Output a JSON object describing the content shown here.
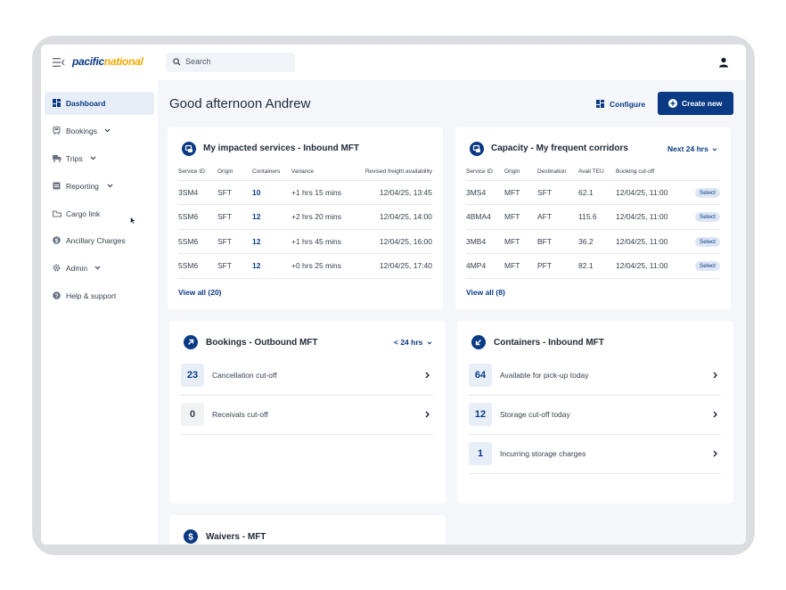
{
  "app": {
    "logo_text_a": "pacific",
    "logo_text_b": "national",
    "search_placeholder": "Search"
  },
  "sidebar": {
    "items": [
      {
        "label": "Dashboard",
        "icon": "dashboard-icon",
        "active": true
      },
      {
        "label": "Bookings",
        "icon": "bookings-icon",
        "has_chevron": true
      },
      {
        "label": "Trips",
        "icon": "truck-icon",
        "has_chevron": true
      },
      {
        "label": "Reporting",
        "icon": "reporting-icon",
        "has_chevron": true
      },
      {
        "label": "Cargo link",
        "icon": "cargo-link-icon"
      },
      {
        "label": "Ancillary Charges",
        "icon": "dollar-icon"
      },
      {
        "label": "Admin",
        "icon": "gear-icon",
        "has_chevron": true
      },
      {
        "label": "Help & support",
        "icon": "help-icon"
      }
    ]
  },
  "header": {
    "greeting": "Good afternoon Andrew",
    "configure_label": "Configure",
    "create_label": "Create new"
  },
  "impacted": {
    "title": "My impacted services - Inbound MFT",
    "columns": [
      "Service ID",
      "Origin",
      "Containers",
      "Variance",
      "Revised freight availability"
    ],
    "rows": [
      {
        "id": "3SM4",
        "origin": "SFT",
        "containers": "10",
        "variance": "+1 hrs 15 mins",
        "revised": "12/04/25, 13:45"
      },
      {
        "id": "5SM6",
        "origin": "SFT",
        "containers": "12",
        "variance": "+2 hrs 20 mins",
        "revised": "12/04/25, 14:00"
      },
      {
        "id": "5SM6",
        "origin": "SFT",
        "containers": "12",
        "variance": "+1 hrs 45 mins",
        "revised": "12/04/25, 16:00"
      },
      {
        "id": "5SM6",
        "origin": "SFT",
        "containers": "12",
        "variance": "+0 hrs 25 mins",
        "revised": "12/04/25, 17:40"
      }
    ],
    "view_all": "View all (20)"
  },
  "capacity": {
    "title": "Capacity - My frequent corridors",
    "filter": "Next 24 hrs",
    "columns": [
      "Service ID",
      "Origin",
      "Destination",
      "Avail TEU",
      "Booking cut-off",
      ""
    ],
    "rows": [
      {
        "id": "3MS4",
        "origin": "MFT",
        "dest": "SFT",
        "teu": "62.1",
        "cutoff": "12/04/25, 11:00",
        "action": "Select"
      },
      {
        "id": "4BMA4",
        "origin": "MFT",
        "dest": "AFT",
        "teu": "115.6",
        "cutoff": "12/04/25, 11:00",
        "action": "Select"
      },
      {
        "id": "3MB4",
        "origin": "MFT",
        "dest": "BFT",
        "teu": "36.2",
        "cutoff": "12/04/25, 11:00",
        "action": "Select"
      },
      {
        "id": "4MP4",
        "origin": "MFT",
        "dest": "PFT",
        "teu": "82.1",
        "cutoff": "12/04/25, 11:00",
        "action": "Select"
      }
    ],
    "view_all": "View all (8)"
  },
  "bookings": {
    "title": "Bookings - Outbound MFT",
    "filter": "< 24 hrs",
    "items": [
      {
        "count": "23",
        "label": "Cancellation cut-off"
      },
      {
        "count": "0",
        "label": "Receivals cut-off"
      }
    ]
  },
  "containers": {
    "title": "Containers - Inbound MFT",
    "items": [
      {
        "count": "64",
        "label": "Available for pick-up today"
      },
      {
        "count": "12",
        "label": "Storage cut-off today"
      },
      {
        "count": "1",
        "label": "Incurring storage charges"
      }
    ]
  },
  "waivers": {
    "title": "Waivers - MFT"
  },
  "colors": {
    "brand_navy": "#0a3a83",
    "brand_yellow": "#f5a800",
    "background": "#f4f6fa"
  }
}
